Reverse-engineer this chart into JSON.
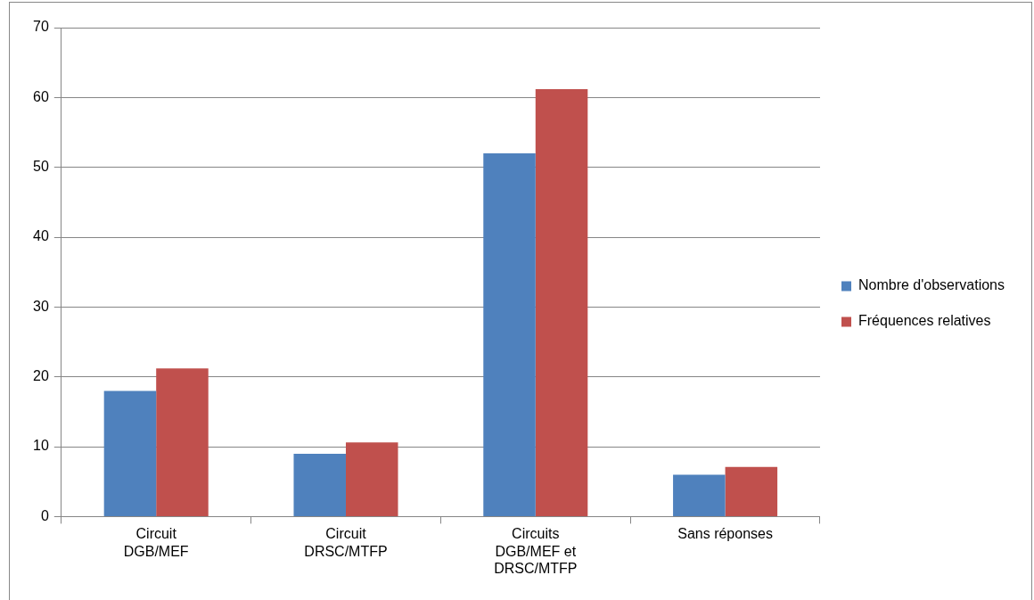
{
  "chart_data": {
    "type": "bar",
    "categories": [
      "Circuit DGB/MEF",
      "Circuit DRSC/MTFP",
      "Circuits DGB/MEF et DRSC/MTFP",
      "Sans réponses"
    ],
    "series": [
      {
        "name": "Nombre d'observations",
        "color": "#4f81bd",
        "values": [
          18,
          9,
          52,
          6
        ]
      },
      {
        "name": "Fréquences relatives",
        "color": "#c0504d",
        "values": [
          21.2,
          10.6,
          61.2,
          7.1
        ]
      }
    ],
    "ylim": [
      0,
      70
    ],
    "yticks": [
      0,
      10,
      20,
      30,
      40,
      50,
      60,
      70
    ],
    "grid": "y",
    "legend": "right"
  }
}
